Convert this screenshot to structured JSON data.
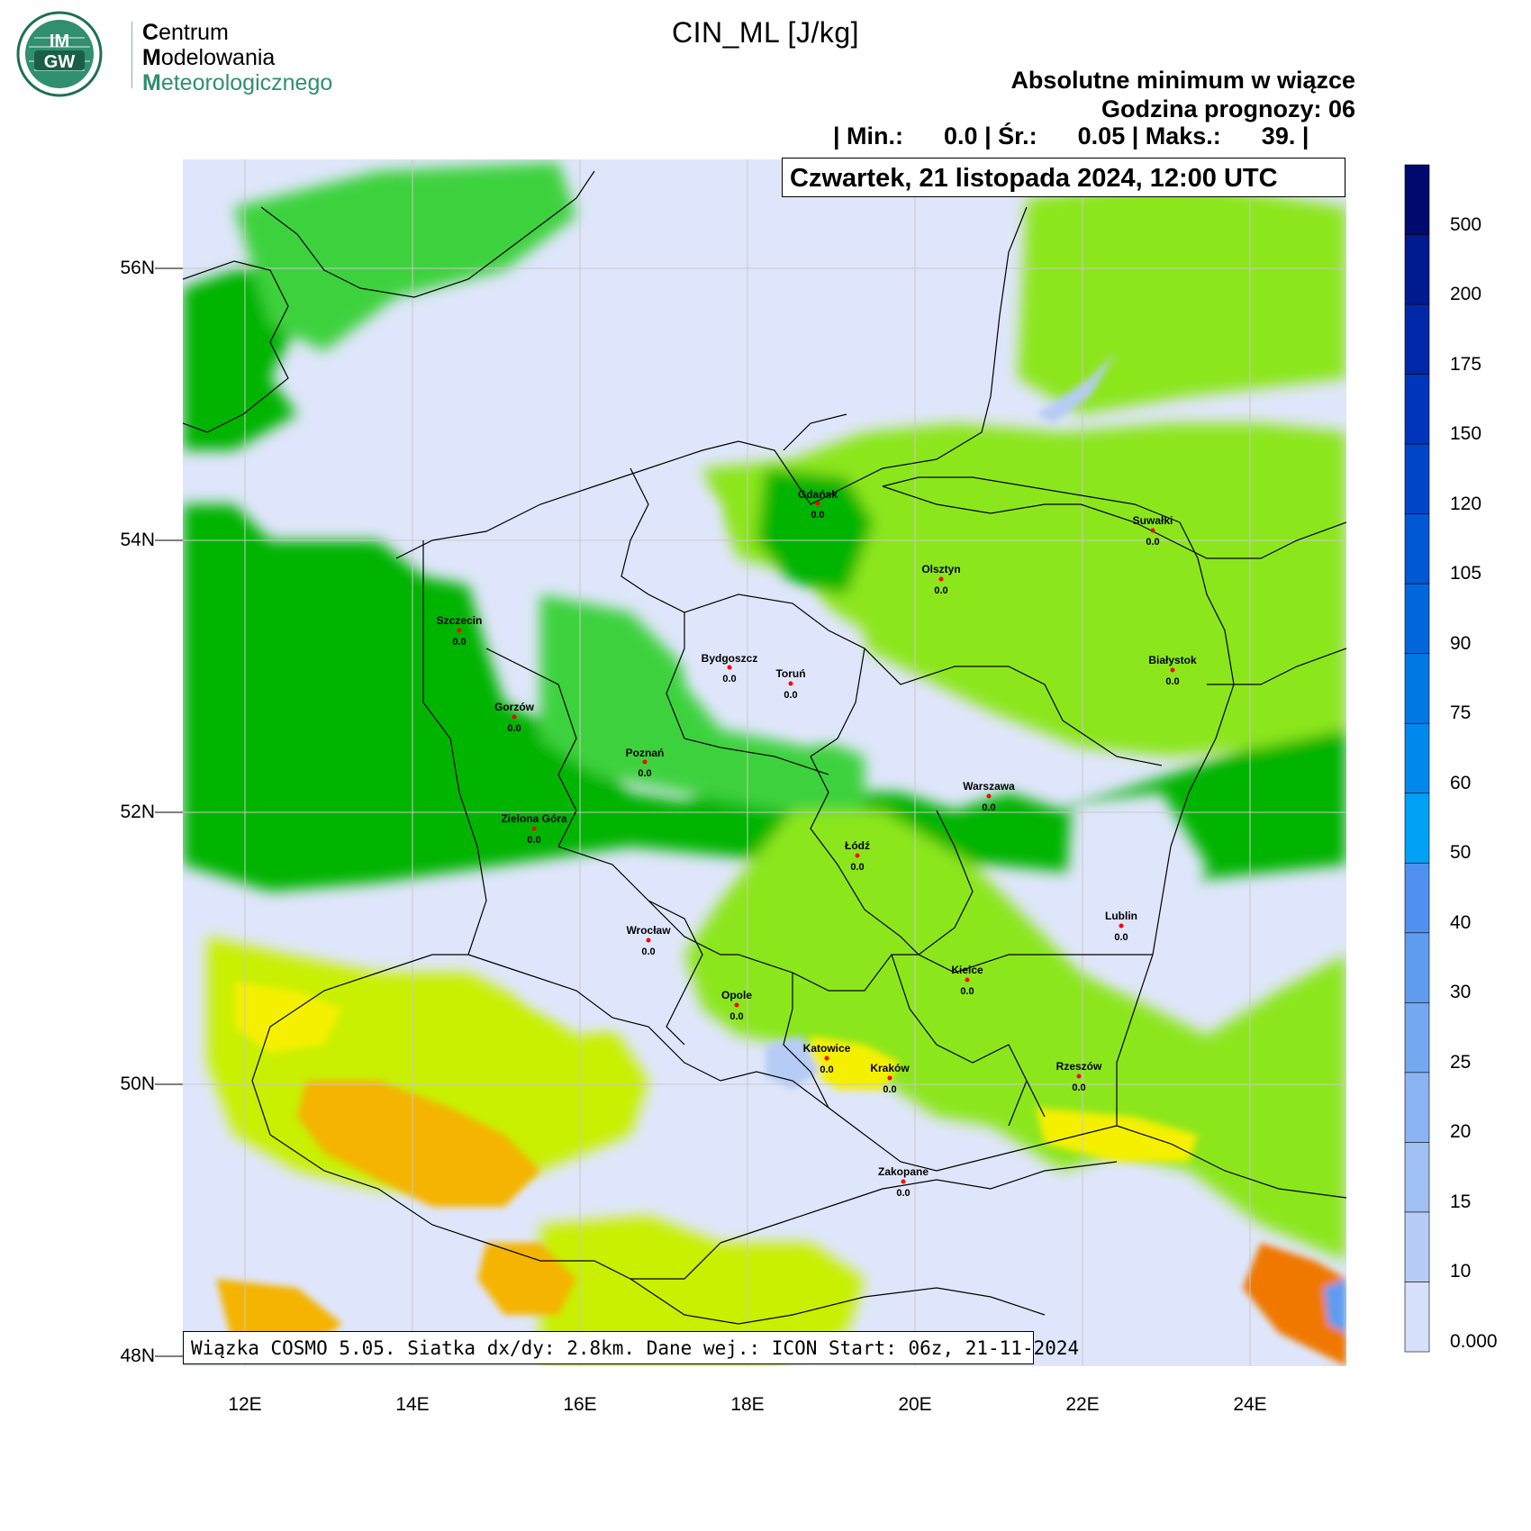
{
  "logo": {
    "badge_text": "IM GW",
    "line1_initial": "C",
    "line1_rest": "entrum",
    "line2_initial": "M",
    "line2_rest": "odelowania",
    "line3_initial": "M",
    "line3_rest": "eteorologicznego",
    "accent_color": "#2f8f6f"
  },
  "header": {
    "title": "CIN_ML [J/kg]",
    "subtitle1": "Absolutne minimum w wiązce",
    "subtitle2": "Godzina prognozy: 06",
    "stats_line": "| Min.:      0.0 | Śr.:      0.05 | Maks.:      39. |"
  },
  "map": {
    "date_label": "Czwartek, 21 listopada 2024, 12:00 UTC",
    "model_info": "Wiązka COSMO 5.05. Siatka dx/dy: 2.8km. Dane wej.: ICON Start: 06z, 21-11-2024",
    "lat_labels": [
      "56N",
      "54N",
      "52N",
      "50N",
      "48N"
    ],
    "lon_labels": [
      "12E",
      "14E",
      "16E",
      "18E",
      "20E",
      "22E",
      "24E"
    ],
    "cities": [
      {
        "name": "Gdańsk",
        "value": "0.0"
      },
      {
        "name": "Suwałki",
        "value": "0.0"
      },
      {
        "name": "Olsztyn",
        "value": "0.0"
      },
      {
        "name": "Szczecin",
        "value": "0.0"
      },
      {
        "name": "Bydgoszcz",
        "value": "0.0"
      },
      {
        "name": "Toruń",
        "value": "0.0"
      },
      {
        "name": "Białystok",
        "value": "0.0"
      },
      {
        "name": "Gorzów",
        "value": "0.0"
      },
      {
        "name": "Poznań",
        "value": "0.0"
      },
      {
        "name": "Warszawa",
        "value": "0.0"
      },
      {
        "name": "Zielona Góra",
        "value": "0.0"
      },
      {
        "name": "Łódź",
        "value": "0.0"
      },
      {
        "name": "Lublin",
        "value": "0.0"
      },
      {
        "name": "Wrocław",
        "value": "0.0"
      },
      {
        "name": "Kielce",
        "value": "0.0"
      },
      {
        "name": "Opole",
        "value": "0.0"
      },
      {
        "name": "Katowice",
        "value": "0.0"
      },
      {
        "name": "Kraków",
        "value": "0.0"
      },
      {
        "name": "Rzeszów",
        "value": "0.0"
      },
      {
        "name": "Zakopane",
        "value": "0.0"
      }
    ]
  },
  "colorbar": {
    "labels": [
      "500",
      "200",
      "175",
      "150",
      "120",
      "105",
      "90",
      "75",
      "60",
      "50",
      "40",
      "30",
      "25",
      "20",
      "15",
      "10",
      "0.000"
    ],
    "colors": [
      "#000a6e",
      "#001a8f",
      "#0028a8",
      "#0036bb",
      "#0046c8",
      "#0058d4",
      "#0068dc",
      "#0078e4",
      "#0088ec",
      "#00a0f4",
      "#4f90f0",
      "#5f9cf0",
      "#74a8f0",
      "#8ab4f2",
      "#a0c0f4",
      "#b6ccf6",
      "#d6e0fa"
    ]
  },
  "colors": {
    "background_field": "#dfe6fb",
    "green_dark": "#00b400",
    "green_mid": "#3cd23c",
    "green_light": "#8ce61e",
    "lime": "#c8f000",
    "yellow": "#f5f000",
    "orange": "#f5b400",
    "orange_dark": "#f07800"
  }
}
